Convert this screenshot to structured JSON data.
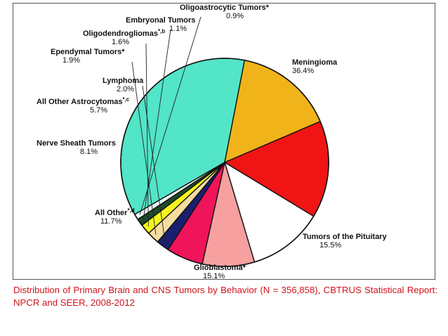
{
  "chart_data": {
    "type": "pie",
    "title": "",
    "slices": [
      {
        "label": "Meningioma",
        "value": 36.4,
        "display": "36.4%",
        "color": "#52e5c8"
      },
      {
        "label": "Tumors of the Pituitary",
        "value": 15.5,
        "display": "15.5%",
        "color": "#f0b41a"
      },
      {
        "label": "Glioblastoma*",
        "value": 15.1,
        "display": "15.1%",
        "color": "#f01414"
      },
      {
        "label": "All Other*,d",
        "value": 11.7,
        "display": "11.7%",
        "color": "#ffffff"
      },
      {
        "label": "Nerve Sheath Tumors",
        "value": 8.1,
        "display": "8.1%",
        "color": "#f7a0a0"
      },
      {
        "label": "All Other Astrocytomas*,c",
        "value": 5.7,
        "display": "5.7%",
        "color": "#f0145a"
      },
      {
        "label": "Lymphoma",
        "value": 2.0,
        "display": "2.0%",
        "color": "#1a1f6e"
      },
      {
        "label": "Ependymal Tumors*",
        "value": 1.9,
        "display": "1.9%",
        "color": "#f7dca0"
      },
      {
        "label": "Oligodendrogliomas*,b",
        "value": 1.6,
        "display": "1.6%",
        "color": "#f5f51e"
      },
      {
        "label": "Embryonal Tumors",
        "value": 1.1,
        "display": "1.1%",
        "color": "#1e4a28"
      },
      {
        "label": "Oligoastrocytic Tumors*",
        "value": 0.9,
        "display": "0.9%",
        "color": "#eaf6f4"
      }
    ]
  },
  "caption": "Distribution of Primary Brain and CNS Tumors by Behavior (N = 356,858), CBTRUS Statistical Report: NPCR and SEER, 2008-2012"
}
